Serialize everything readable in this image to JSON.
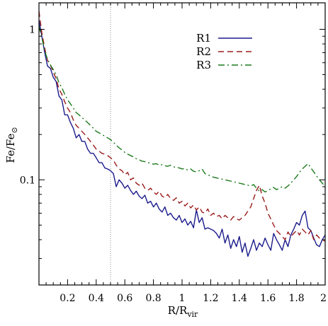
{
  "chart_data": {
    "type": "line",
    "xlabel": "R/R_vir",
    "ylabel": "Fe/Fe_⊙",
    "xlim": [
      0,
      2
    ],
    "ylim": [
      0.02,
      1.5
    ],
    "yscale": "log",
    "grid": false,
    "legend_placement": "top-right",
    "x_ticks": [
      0.2,
      0.4,
      0.6,
      0.8,
      1,
      1.2,
      1.4,
      1.6,
      1.8,
      2
    ],
    "x_tick_labels": [
      "0.2",
      "0.4",
      "0.6",
      "0.8",
      "1",
      "1.2",
      "1.4",
      "1.6",
      "1.8",
      "2"
    ],
    "y_ticks": [
      1,
      0.1
    ],
    "y_tick_labels": [
      "1",
      "0.1"
    ],
    "vline": {
      "x": 0.5,
      "style": "dotted",
      "color": "#888888"
    },
    "series": [
      {
        "name": "R1",
        "color": "#1c1c8c",
        "dash": "solid",
        "x": [
          0.0,
          0.02,
          0.04,
          0.06,
          0.08,
          0.1,
          0.12,
          0.14,
          0.16,
          0.18,
          0.2,
          0.22,
          0.24,
          0.26,
          0.28,
          0.3,
          0.32,
          0.34,
          0.36,
          0.38,
          0.4,
          0.42,
          0.44,
          0.46,
          0.48,
          0.5,
          0.52,
          0.54,
          0.56,
          0.58,
          0.6,
          0.62,
          0.64,
          0.66,
          0.68,
          0.7,
          0.72,
          0.74,
          0.76,
          0.78,
          0.8,
          0.82,
          0.84,
          0.86,
          0.88,
          0.9,
          0.92,
          0.94,
          0.96,
          0.98,
          1.0,
          1.02,
          1.04,
          1.06,
          1.08,
          1.1,
          1.12,
          1.14,
          1.16,
          1.18,
          1.2,
          1.22,
          1.24,
          1.26,
          1.28,
          1.3,
          1.32,
          1.34,
          1.36,
          1.38,
          1.4,
          1.42,
          1.44,
          1.46,
          1.48,
          1.5,
          1.52,
          1.54,
          1.56,
          1.58,
          1.6,
          1.62,
          1.64,
          1.66,
          1.68,
          1.7,
          1.72,
          1.74,
          1.76,
          1.78,
          1.8,
          1.82,
          1.84,
          1.86,
          1.88,
          1.9,
          1.92,
          1.94,
          1.96,
          1.98,
          2.0
        ],
        "values": [
          1.15,
          0.9,
          0.7,
          0.57,
          0.55,
          0.48,
          0.45,
          0.36,
          0.34,
          0.27,
          0.27,
          0.24,
          0.22,
          0.19,
          0.2,
          0.18,
          0.18,
          0.16,
          0.15,
          0.15,
          0.14,
          0.13,
          0.13,
          0.12,
          0.118,
          0.115,
          0.11,
          0.09,
          0.1,
          0.095,
          0.088,
          0.092,
          0.085,
          0.08,
          0.084,
          0.078,
          0.075,
          0.079,
          0.07,
          0.072,
          0.066,
          0.07,
          0.064,
          0.061,
          0.066,
          0.058,
          0.06,
          0.056,
          0.054,
          0.058,
          0.052,
          0.055,
          0.05,
          0.053,
          0.048,
          0.063,
          0.052,
          0.056,
          0.047,
          0.048,
          0.047,
          0.046,
          0.044,
          0.041,
          0.047,
          0.038,
          0.043,
          0.035,
          0.04,
          0.036,
          0.042,
          0.033,
          0.038,
          0.031,
          0.035,
          0.04,
          0.034,
          0.038,
          0.036,
          0.041,
          0.037,
          0.034,
          0.044,
          0.04,
          0.037,
          0.034,
          0.04,
          0.036,
          0.043,
          0.047,
          0.052,
          0.05,
          0.058,
          0.062,
          0.048,
          0.046,
          0.041,
          0.037,
          0.036,
          0.04,
          0.043
        ]
      },
      {
        "name": "R2",
        "color": "#9a1c1c",
        "dash": "dashed",
        "x": [
          0.0,
          0.02,
          0.04,
          0.06,
          0.08,
          0.1,
          0.12,
          0.14,
          0.16,
          0.18,
          0.2,
          0.22,
          0.24,
          0.26,
          0.28,
          0.3,
          0.32,
          0.34,
          0.36,
          0.38,
          0.4,
          0.42,
          0.44,
          0.46,
          0.48,
          0.5,
          0.52,
          0.54,
          0.56,
          0.58,
          0.6,
          0.62,
          0.64,
          0.66,
          0.68,
          0.7,
          0.72,
          0.74,
          0.76,
          0.78,
          0.8,
          0.82,
          0.84,
          0.86,
          0.88,
          0.9,
          0.92,
          0.94,
          0.96,
          0.98,
          1.0,
          1.02,
          1.04,
          1.06,
          1.08,
          1.1,
          1.12,
          1.14,
          1.16,
          1.18,
          1.2,
          1.22,
          1.24,
          1.26,
          1.28,
          1.3,
          1.32,
          1.34,
          1.36,
          1.38,
          1.4,
          1.42,
          1.44,
          1.46,
          1.48,
          1.5,
          1.52,
          1.54,
          1.56,
          1.58,
          1.6,
          1.62,
          1.64,
          1.66,
          1.68,
          1.7,
          1.72,
          1.74,
          1.76,
          1.78,
          1.8,
          1.82,
          1.84,
          1.86,
          1.88,
          1.9,
          1.92,
          1.94,
          1.96,
          1.98,
          2.0
        ],
        "values": [
          1.32,
          0.95,
          0.75,
          0.62,
          0.58,
          0.52,
          0.47,
          0.4,
          0.37,
          0.33,
          0.3,
          0.28,
          0.25,
          0.23,
          0.22,
          0.21,
          0.2,
          0.19,
          0.18,
          0.17,
          0.16,
          0.155,
          0.15,
          0.148,
          0.145,
          0.14,
          0.135,
          0.125,
          0.118,
          0.115,
          0.108,
          0.112,
          0.1,
          0.103,
          0.095,
          0.092,
          0.095,
          0.088,
          0.085,
          0.088,
          0.083,
          0.08,
          0.084,
          0.078,
          0.076,
          0.08,
          0.075,
          0.073,
          0.076,
          0.07,
          0.072,
          0.067,
          0.07,
          0.065,
          0.068,
          0.063,
          0.066,
          0.061,
          0.06,
          0.064,
          0.058,
          0.06,
          0.057,
          0.058,
          0.055,
          0.058,
          0.056,
          0.054,
          0.057,
          0.055,
          0.054,
          0.056,
          0.058,
          0.062,
          0.066,
          0.075,
          0.085,
          0.092,
          0.078,
          0.07,
          0.06,
          0.055,
          0.05,
          0.046,
          0.044,
          0.042,
          0.04,
          0.045,
          0.042,
          0.044,
          0.046,
          0.043,
          0.047,
          0.045,
          0.043,
          0.046,
          0.04,
          0.043,
          0.041,
          0.04,
          0.039
        ]
      },
      {
        "name": "R3",
        "color": "#1c7a1c",
        "dash": "dashdot",
        "x": [
          0.0,
          0.02,
          0.04,
          0.06,
          0.08,
          0.1,
          0.12,
          0.14,
          0.16,
          0.18,
          0.2,
          0.22,
          0.24,
          0.26,
          0.28,
          0.3,
          0.32,
          0.34,
          0.36,
          0.38,
          0.4,
          0.42,
          0.44,
          0.46,
          0.48,
          0.5,
          0.52,
          0.54,
          0.56,
          0.58,
          0.6,
          0.62,
          0.64,
          0.66,
          0.68,
          0.7,
          0.72,
          0.74,
          0.76,
          0.78,
          0.8,
          0.82,
          0.84,
          0.86,
          0.88,
          0.9,
          0.92,
          0.94,
          0.96,
          0.98,
          1.0,
          1.02,
          1.04,
          1.06,
          1.08,
          1.1,
          1.12,
          1.14,
          1.16,
          1.18,
          1.2,
          1.22,
          1.24,
          1.26,
          1.28,
          1.3,
          1.32,
          1.34,
          1.36,
          1.38,
          1.4,
          1.42,
          1.44,
          1.46,
          1.48,
          1.5,
          1.52,
          1.54,
          1.56,
          1.58,
          1.6,
          1.62,
          1.64,
          1.66,
          1.68,
          1.7,
          1.72,
          1.74,
          1.76,
          1.78,
          1.8,
          1.82,
          1.84,
          1.86,
          1.88,
          1.9,
          1.92,
          1.94,
          1.96,
          1.98,
          2.0
        ],
        "values": [
          1.05,
          0.88,
          0.72,
          0.63,
          0.58,
          0.54,
          0.5,
          0.44,
          0.41,
          0.37,
          0.34,
          0.32,
          0.3,
          0.28,
          0.27,
          0.26,
          0.25,
          0.24,
          0.23,
          0.22,
          0.21,
          0.205,
          0.2,
          0.195,
          0.19,
          0.185,
          0.178,
          0.17,
          0.163,
          0.158,
          0.152,
          0.148,
          0.145,
          0.142,
          0.138,
          0.136,
          0.133,
          0.132,
          0.13,
          0.129,
          0.127,
          0.128,
          0.125,
          0.126,
          0.124,
          0.123,
          0.125,
          0.122,
          0.121,
          0.12,
          0.118,
          0.119,
          0.116,
          0.118,
          0.114,
          0.113,
          0.115,
          0.118,
          0.11,
          0.108,
          0.106,
          0.104,
          0.103,
          0.102,
          0.101,
          0.1,
          0.099,
          0.098,
          0.097,
          0.096,
          0.095,
          0.094,
          0.093,
          0.092,
          0.091,
          0.093,
          0.088,
          0.084,
          0.086,
          0.083,
          0.085,
          0.087,
          0.089,
          0.086,
          0.088,
          0.09,
          0.088,
          0.091,
          0.095,
          0.1,
          0.105,
          0.112,
          0.118,
          0.123,
          0.128,
          0.12,
          0.113,
          0.106,
          0.1,
          0.095,
          0.09
        ]
      }
    ]
  }
}
